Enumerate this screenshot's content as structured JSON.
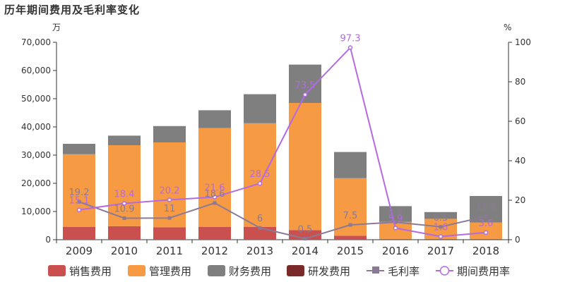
{
  "title": "历年期间费用及毛利率变化",
  "chart_data": {
    "type": "bar",
    "stacked": true,
    "categories": [
      "2009",
      "2010",
      "2011",
      "2012",
      "2013",
      "2014",
      "2015",
      "2016",
      "2017",
      "2018"
    ],
    "left_axis": {
      "unit": "万",
      "ylim": [
        0,
        70000
      ],
      "ticks": [
        0,
        10000,
        20000,
        30000,
        40000,
        50000,
        60000,
        70000
      ],
      "tick_labels": [
        "0",
        "10,000",
        "20,000",
        "30,000",
        "40,000",
        "50,000",
        "60,000",
        "70,000"
      ]
    },
    "right_axis": {
      "unit": "%",
      "ylim": [
        0,
        100
      ],
      "ticks": [
        0,
        20,
        40,
        60,
        80,
        100
      ],
      "tick_labels": [
        "0",
        "20",
        "40",
        "60",
        "80",
        "100"
      ]
    },
    "series": [
      {
        "name": "销售费用",
        "kind": "bar",
        "axis": "left",
        "color": "#c9504f",
        "values": [
          4500,
          4800,
          4400,
          4500,
          4500,
          3400,
          1400,
          300,
          300,
          300
        ]
      },
      {
        "name": "管理费用",
        "kind": "bar",
        "axis": "left",
        "color": "#f69a44",
        "values": [
          25800,
          28700,
          30100,
          35100,
          36800,
          45100,
          20400,
          6000,
          7100,
          5800
        ]
      },
      {
        "name": "财务费用",
        "kind": "bar",
        "axis": "left",
        "color": "#7f7f7f",
        "values": [
          3700,
          3400,
          5800,
          6300,
          10300,
          13600,
          9300,
          5600,
          2400,
          9400
        ]
      },
      {
        "name": "研发费用",
        "kind": "bar",
        "axis": "left",
        "color": "#7b2a2a",
        "values": [
          0,
          0,
          0,
          0,
          0,
          0,
          0,
          0,
          0,
          0
        ]
      },
      {
        "name": "毛利率",
        "kind": "line",
        "axis": "right",
        "color": "#8a7a96",
        "marker": "square",
        "values": [
          19.2,
          10.9,
          11,
          18.6,
          6,
          0.5,
          7.5,
          8.9,
          6.5,
          11.8
        ],
        "labels": [
          "19.2",
          "10.9",
          "11",
          "18.6",
          "6",
          "0.5",
          "7.5",
          "8.9",
          "6.5",
          "11.8"
        ]
      },
      {
        "name": "期间费用率",
        "kind": "line",
        "axis": "right",
        "color": "#b36ae2",
        "marker": "circle",
        "values": [
          15.1,
          18.4,
          20.2,
          21.6,
          28.5,
          73.5,
          97.3,
          5.9,
          1.6,
          3.6
        ],
        "labels": [
          "15.1",
          "18.4",
          "20.2",
          "21.6",
          "28.5",
          "73.5",
          "97.3",
          "5.9",
          "1.6",
          "3.6"
        ]
      }
    ],
    "grid": false,
    "legend_position": "bottom"
  }
}
